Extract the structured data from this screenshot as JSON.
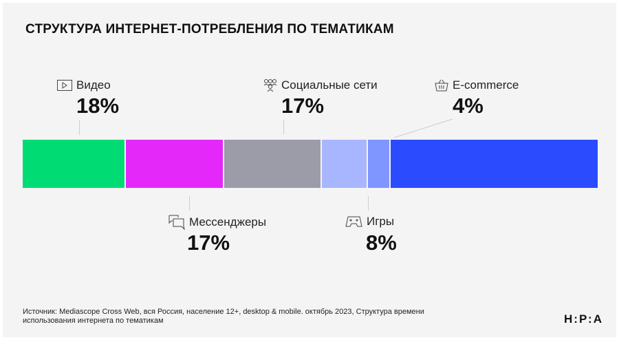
{
  "chart_data": {
    "type": "bar",
    "orientation": "horizontal-stacked",
    "title": "СТРУКТУРА ИНТЕРНЕТ-ПОТРЕБЛЕНИЯ ПО ТЕМАТИКАМ",
    "series": [
      {
        "name": "Видео",
        "value": 18,
        "label": "18%",
        "color": "#00dc73",
        "icon": "video-play-icon"
      },
      {
        "name": "Мессенджеры",
        "value": 17,
        "label": "17%",
        "color": "#e428fa",
        "icon": "chat-bubbles-icon"
      },
      {
        "name": "Социальные сети",
        "value": 17,
        "label": "17%",
        "color": "#9c9ba8",
        "icon": "people-icon"
      },
      {
        "name": "Игры",
        "value": 8,
        "label": "8%",
        "color": "#a8b6ff",
        "icon": "gamepad-icon"
      },
      {
        "name": "E-commerce",
        "value": 4,
        "label": "4%",
        "color": "#7f95ff",
        "icon": "basket-icon"
      },
      {
        "value": 36,
        "color": "#2b4bff"
      }
    ],
    "grid": false,
    "legend": "none"
  },
  "source": "Источник: Mediascope Cross Web, вся Россия, население 12+, desktop & mobile. октябрь 2023, Структура времени использования интернета по тематикам",
  "logo": "Н:Р:А"
}
